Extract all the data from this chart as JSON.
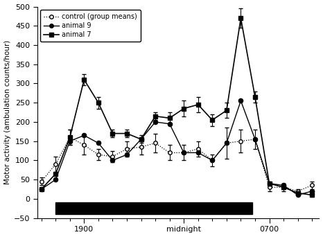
{
  "x_positions": [
    0,
    1,
    2,
    3,
    4,
    5,
    6,
    7,
    8,
    9,
    10,
    11,
    12,
    13,
    14,
    15,
    16,
    17,
    18,
    19
  ],
  "x_label_ticks": [
    3,
    10,
    16
  ],
  "x_labels": [
    "1900",
    "midnight",
    "0700"
  ],
  "control_y": [
    45,
    90,
    160,
    140,
    115,
    110,
    130,
    135,
    145,
    120,
    120,
    130,
    100,
    145,
    150,
    155,
    30,
    30,
    20,
    35
  ],
  "control_err": [
    10,
    20,
    20,
    25,
    15,
    15,
    20,
    20,
    25,
    20,
    20,
    20,
    15,
    40,
    30,
    25,
    10,
    10,
    5,
    10
  ],
  "animal9_y": [
    25,
    50,
    150,
    165,
    145,
    100,
    115,
    155,
    200,
    195,
    120,
    120,
    100,
    145,
    255,
    155,
    40,
    35,
    10,
    20
  ],
  "animal7_y": [
    25,
    65,
    160,
    310,
    250,
    170,
    170,
    155,
    215,
    210,
    235,
    245,
    205,
    230,
    470,
    265,
    40,
    30,
    15,
    10
  ],
  "animal7_err": [
    0,
    0,
    20,
    15,
    15,
    10,
    10,
    10,
    10,
    15,
    20,
    20,
    15,
    20,
    25,
    15,
    5,
    5,
    5,
    5
  ],
  "dark_bar_xstart": 1,
  "dark_bar_xend": 14.8,
  "dark_bar_ybottom": -40,
  "dark_bar_ytop": -10,
  "ylim_min": -50,
  "ylim_max": 500,
  "xlim_min": -0.3,
  "xlim_max": 19.5,
  "ylabel": "Motor activity (ambulation counts/hour)",
  "bg_color": "#ffffff",
  "yticks": [
    -50,
    0,
    50,
    100,
    150,
    200,
    250,
    300,
    350,
    400,
    450,
    500
  ]
}
